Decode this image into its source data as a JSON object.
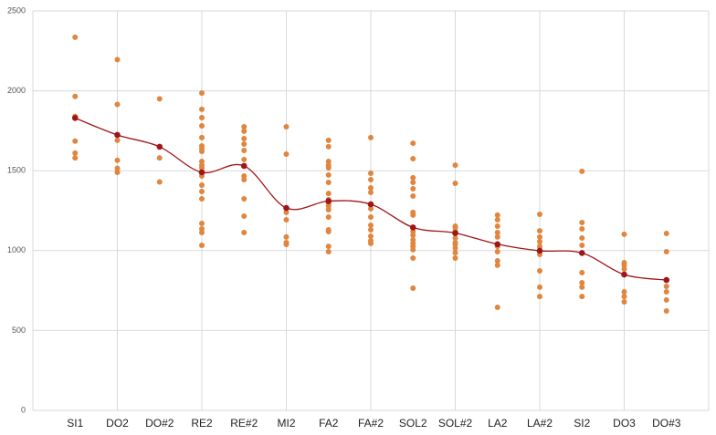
{
  "chart_data": {
    "type": "scatter",
    "xlim": [
      0,
      16
    ],
    "xticks": [
      {
        "value": 1,
        "label": "SI1"
      },
      {
        "value": 2,
        "label": "DO2"
      },
      {
        "value": 3,
        "label": "DO#2"
      },
      {
        "value": 4,
        "label": "RE2"
      },
      {
        "value": 5,
        "label": "RE#2"
      },
      {
        "value": 6,
        "label": "MI2"
      },
      {
        "value": 7,
        "label": "FA2"
      },
      {
        "value": 8,
        "label": "FA#2"
      },
      {
        "value": 9,
        "label": "SOL2"
      },
      {
        "value": 10,
        "label": "SOL#2"
      },
      {
        "value": 11,
        "label": "LA2"
      },
      {
        "value": 12,
        "label": "LA#2"
      },
      {
        "value": 13,
        "label": "SI2"
      },
      {
        "value": 14,
        "label": "DO3"
      },
      {
        "value": 15,
        "label": "DO#3"
      }
    ],
    "xgrid": [
      0,
      2,
      4,
      6,
      8,
      10,
      12,
      14,
      16
    ],
    "ylim": [
      0,
      2500
    ],
    "yticks": [
      0,
      500,
      1000,
      1500,
      2000,
      2500
    ],
    "grid": true,
    "point_color": "#e0863f",
    "points": [
      [
        2335,
        1965,
        1840,
        1685,
        1610,
        1580
      ],
      [
        2195,
        1915,
        1690,
        1565,
        1515,
        1490
      ],
      [
        1950,
        1580,
        1430
      ],
      [
        1986,
        1884,
        1832,
        1781,
        1707,
        1655,
        1638,
        1621,
        1558,
        1535,
        1518,
        1467,
        1410,
        1370,
        1324,
        1170,
        1136,
        1113,
        1033
      ],
      [
        1775,
        1747,
        1701,
        1667,
        1627,
        1570,
        1467,
        1444,
        1324,
        1216,
        1113
      ],
      [
        1775,
        1604,
        1239,
        1193,
        1085,
        1050,
        1039
      ],
      [
        1690,
        1650,
        1558,
        1535,
        1518,
        1473,
        1427,
        1358,
        1319,
        1296,
        1279,
        1256,
        1210,
        1130,
        1119,
        1027,
        993
      ],
      [
        1707,
        1484,
        1444,
        1393,
        1364,
        1262,
        1210,
        1159,
        1130,
        1090,
        1062,
        1045
      ],
      [
        1672,
        1575,
        1456,
        1427,
        1387,
        1341,
        1239,
        1222,
        1119,
        1096,
        1067,
        1045,
        1027,
        1005,
        953,
        765
      ],
      [
        1535,
        1421,
        1153,
        1142,
        1119,
        1107,
        1079,
        1050,
        1039,
        1016,
        987,
        953
      ],
      [
        1222,
        1193,
        1153,
        1113,
        1085,
        1027,
        993,
        936,
        908,
        645
      ],
      [
        1227,
        1124,
        1085,
        1056,
        1027,
        976,
        873,
        771,
        713
      ],
      [
        1496,
        1176,
        1136,
        1079,
        1033,
        862,
        799,
        771,
        713
      ],
      [
        1102,
        925,
        908,
        885,
        742,
        713,
        679
      ],
      [
        1107,
        993,
        776,
        742,
        691,
        622
      ]
    ],
    "mean_color": "#a01518",
    "means": [
      1830,
      1724,
      1650,
      1490,
      1530,
      1267,
      1310,
      1290,
      1145,
      1110,
      1040,
      999,
      985,
      850,
      816
    ]
  }
}
